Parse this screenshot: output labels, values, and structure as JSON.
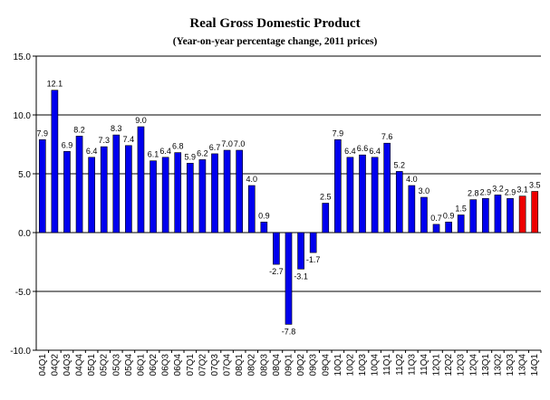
{
  "colors": {
    "bar": "#0000ee",
    "bar_highlight": "#ee0000",
    "bar_edge": "#000000",
    "grid": "#000000",
    "background": "#ffffff"
  },
  "chart_data": {
    "type": "bar",
    "title": "Real Gross Domestic Product",
    "subtitle": "(Year-on-year percentage change, 2011 prices)",
    "xlabel": "",
    "ylabel": "",
    "ylim": [
      -10,
      15
    ],
    "yticks": [
      "15.0",
      "10.0",
      "5.0",
      "0.0",
      "-5.0",
      "-10.0"
    ],
    "grid": true,
    "legend": "none",
    "categories": [
      "04Q1",
      "04Q2",
      "04Q3",
      "04Q4",
      "05Q1",
      "05Q2",
      "05Q3",
      "05Q4",
      "06Q1",
      "06Q2",
      "06Q3",
      "06Q4",
      "07Q1",
      "07Q2",
      "07Q3",
      "07Q4",
      "08Q1",
      "08Q2",
      "08Q3",
      "08Q4",
      "09Q1",
      "09Q2",
      "09Q3",
      "09Q4",
      "10Q1",
      "10Q2",
      "10Q3",
      "10Q4",
      "11Q1",
      "11Q2",
      "11Q3",
      "11Q4",
      "12Q1",
      "12Q2",
      "12Q3",
      "12Q4",
      "13Q1",
      "13Q2",
      "13Q3",
      "13Q4",
      "14Q1"
    ],
    "values": [
      7.9,
      12.1,
      6.9,
      8.2,
      6.4,
      7.3,
      8.3,
      7.4,
      9.0,
      6.1,
      6.4,
      6.8,
      5.9,
      6.2,
      6.7,
      7.0,
      7.0,
      4.0,
      0.9,
      -2.7,
      -7.8,
      -3.1,
      -1.7,
      2.5,
      7.9,
      6.4,
      6.6,
      6.4,
      7.6,
      5.2,
      4.0,
      3.0,
      0.7,
      0.9,
      1.5,
      2.8,
      2.9,
      3.2,
      2.9,
      3.1,
      3.5
    ],
    "data_labels": [
      "7.9",
      "12.1",
      "6.9",
      "8.2",
      "6.4",
      "7.3",
      "8.3",
      "7.4",
      "9.0",
      "6.1",
      "6.4",
      "6.8",
      "5.9",
      "6.2",
      "6.7",
      "7.0",
      "7.0",
      "4.0",
      "0.9",
      "-2.7",
      "-7.8",
      "-3.1",
      "-1.7",
      "2.5",
      "7.9",
      "6.4",
      "6.6",
      "6.4",
      "7.6",
      "5.2",
      "4.0",
      "3.0",
      "0.7",
      "0.9",
      "1.5",
      "2.8",
      "2.9",
      "3.2",
      "2.9",
      "3.1",
      "3.5"
    ],
    "highlighted_categories": [
      "13Q4",
      "14Q1"
    ]
  }
}
